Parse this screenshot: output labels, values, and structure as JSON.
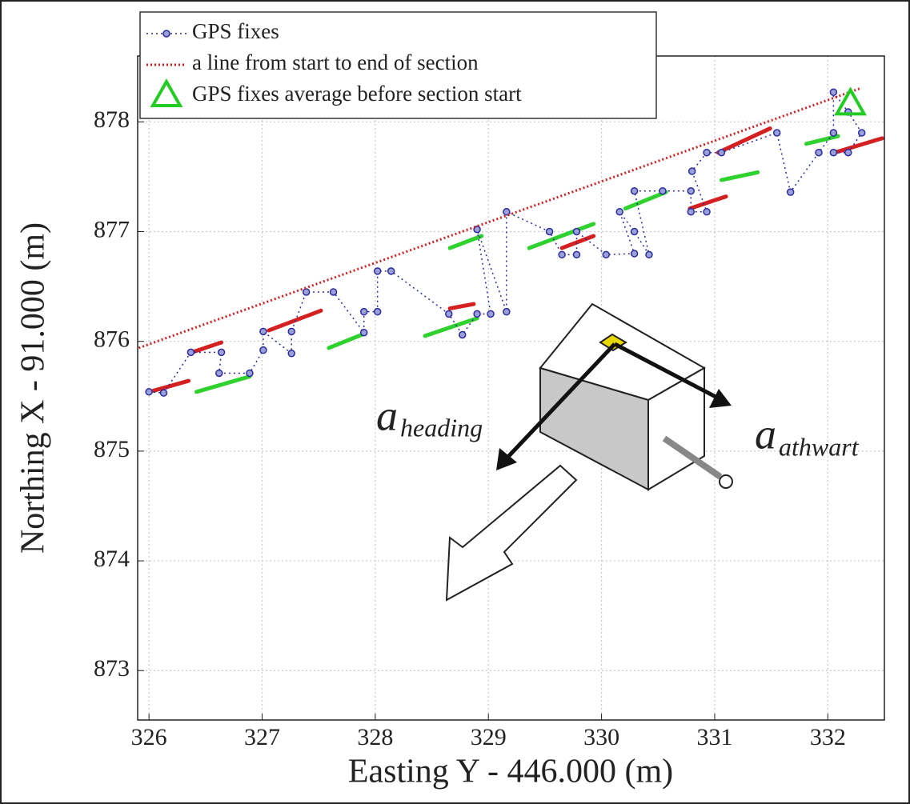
{
  "chart_data": {
    "type": "line",
    "x_label": "Easting Y - 446.000 (m)",
    "y_label": "Northing X - 91.000 (m)",
    "xlim": [
      325.9,
      332.5
    ],
    "ylim": [
      872.55,
      878.6
    ],
    "xticks": [
      326,
      327,
      328,
      329,
      330,
      331,
      332
    ],
    "yticks": [
      873,
      874,
      875,
      876,
      877,
      878
    ],
    "grid": true,
    "legend": "upper left",
    "series": [
      {
        "name": "GPS fixes",
        "color": "#2b2b9e",
        "marker": "o",
        "linestyle": "dotted",
        "x": [
          326.0,
          326.13,
          326.37,
          326.64,
          326.62,
          326.89,
          327.01,
          327.01,
          327.26,
          327.26,
          327.39,
          327.63,
          327.9,
          327.9,
          328.02,
          328.02,
          328.14,
          328.65,
          328.77,
          328.9,
          329.02,
          328.9,
          329.16,
          329.16,
          329.54,
          329.65,
          329.78,
          329.78,
          330.04,
          330.29,
          330.16,
          330.29,
          330.42,
          330.29,
          330.54,
          330.79,
          330.79,
          330.93,
          330.8,
          330.93,
          331.06,
          331.55,
          331.67,
          331.92,
          332.05,
          332.05,
          332.18,
          332.3,
          332.18,
          332.05
        ],
        "values": [
          875.54,
          875.53,
          875.9,
          875.9,
          875.71,
          875.71,
          875.92,
          876.09,
          875.89,
          876.09,
          876.45,
          876.45,
          876.08,
          876.27,
          876.27,
          876.64,
          876.64,
          876.25,
          876.06,
          876.25,
          876.25,
          877.02,
          876.27,
          877.18,
          877.0,
          876.79,
          876.79,
          877.0,
          876.79,
          876.8,
          877.18,
          877.0,
          876.79,
          877.37,
          877.37,
          877.37,
          877.18,
          877.18,
          877.55,
          877.72,
          877.72,
          877.9,
          877.36,
          877.72,
          877.9,
          878.27,
          878.09,
          877.9,
          877.72,
          877.72
        ]
      },
      {
        "name": "a line from start to end of section",
        "color": "#cc2222",
        "linestyle": "dotted",
        "x": [
          325.91,
          332.3
        ],
        "values": [
          875.94,
          878.31
        ]
      },
      {
        "name": "GPS fixes average before section start",
        "color": "#22cc22",
        "marker": "^",
        "x": [
          332.2
        ],
        "values": [
          878.16
        ]
      }
    ],
    "vectors": [
      {
        "color": "#d42020",
        "segments": [
          {
            "x": [
              326.04,
              326.35
            ],
            "values": [
              875.55,
              875.64
            ]
          },
          {
            "x": [
              326.38,
              326.64
            ],
            "values": [
              875.9,
              875.99
            ]
          },
          {
            "x": [
              327.06,
              327.52
            ],
            "values": [
              876.1,
              876.28
            ]
          },
          {
            "x": [
              328.66,
              328.87
            ],
            "values": [
              876.3,
              876.34
            ]
          },
          {
            "x": [
              329.65,
              329.93
            ],
            "values": [
              876.85,
              876.96
            ]
          },
          {
            "x": [
              330.78,
              331.1
            ],
            "values": [
              877.21,
              877.32
            ]
          },
          {
            "x": [
              331.03,
              331.49
            ],
            "values": [
              877.72,
              877.94
            ]
          },
          {
            "x": [
              332.06,
              332.48
            ],
            "values": [
              877.72,
              877.85
            ]
          }
        ]
      },
      {
        "color": "#2ed12e",
        "segments": [
          {
            "x": [
              326.42,
              326.89
            ],
            "values": [
              875.54,
              875.68
            ]
          },
          {
            "x": [
              327.59,
              327.88
            ],
            "values": [
              875.94,
              876.06
            ]
          },
          {
            "x": [
              328.44,
              328.9
            ],
            "values": [
              876.05,
              876.21
            ]
          },
          {
            "x": [
              328.66,
              328.94
            ],
            "values": [
              876.85,
              876.96
            ]
          },
          {
            "x": [
              329.36,
              329.93
            ],
            "values": [
              876.85,
              877.07
            ]
          },
          {
            "x": [
              330.21,
              330.57
            ],
            "values": [
              877.21,
              877.36
            ]
          },
          {
            "x": [
              331.06,
              331.38
            ],
            "values": [
              877.47,
              877.54
            ]
          },
          {
            "x": [
              331.81,
              332.09
            ],
            "values": [
              877.8,
              877.87
            ]
          }
        ]
      }
    ],
    "annotations": [
      {
        "text": "a",
        "subscript": "heading"
      },
      {
        "text": "a",
        "subscript": "athwart"
      }
    ]
  }
}
